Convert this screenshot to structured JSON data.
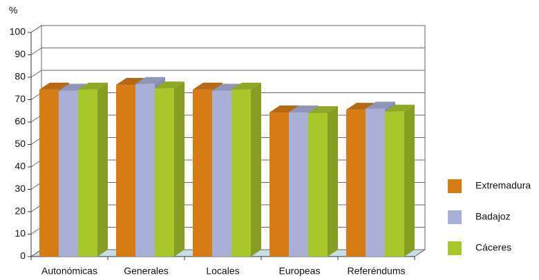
{
  "chart_data": {
    "type": "bar3d",
    "y_unit": "%",
    "categories": [
      "Autonómicas",
      "Generales",
      "Locales",
      "Europeas",
      "Referéndums"
    ],
    "series": [
      {
        "name": "Extremadura",
        "color": "#d67c16",
        "values": [
          74.5,
          76.6,
          74.5,
          64.3,
          65.5
        ]
      },
      {
        "name": "Badajoz",
        "color": "#a9b0d8",
        "values": [
          74,
          77,
          74,
          64.3,
          66
        ]
      },
      {
        "name": "Cáceres",
        "color": "#a9c62b",
        "values": [
          74.5,
          75,
          74.5,
          64,
          64.7
        ]
      }
    ],
    "ylim": [
      0,
      100
    ],
    "yticks": [
      0,
      10,
      20,
      30,
      40,
      50,
      60,
      70,
      80,
      90,
      100
    ],
    "grid": true,
    "legend": "right"
  }
}
